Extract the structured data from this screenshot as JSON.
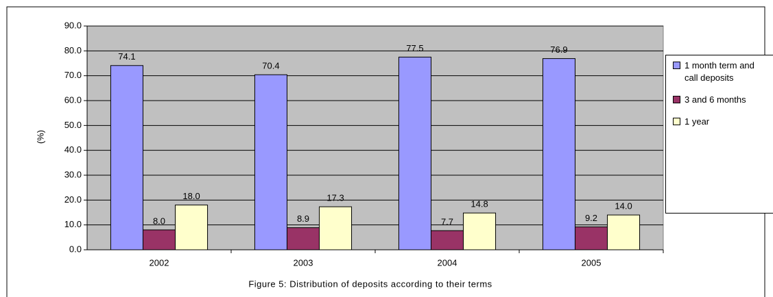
{
  "chart_data": {
    "type": "bar",
    "title": "Figure 5: Distribution of deposits according to their terms",
    "y_label": "(%)",
    "categories": [
      "2002",
      "2003",
      "2004",
      "2005"
    ],
    "series": [
      {
        "name": "1 month term and call deposits",
        "color": "#9999ff",
        "values": [
          74.1,
          70.4,
          77.5,
          76.9
        ],
        "value_labels": [
          "74.1",
          "70.4",
          "77.5",
          "76.9"
        ]
      },
      {
        "name": "3 and 6 months",
        "color": "#993366",
        "values": [
          8.0,
          8.9,
          7.7,
          9.2
        ],
        "value_labels": [
          "8.0",
          "8.9",
          "7.7",
          "9.2"
        ]
      },
      {
        "name": "1 year",
        "color": "#ffffcc",
        "values": [
          18.0,
          17.3,
          14.8,
          14.0
        ],
        "value_labels": [
          "18.0",
          "17.3",
          "14.8",
          "14.0"
        ]
      }
    ],
    "ylim": [
      0,
      90
    ],
    "yticks": [
      {
        "value": 0,
        "label": "0.0"
      },
      {
        "value": 10,
        "label": "10.0"
      },
      {
        "value": 20,
        "label": "20.0"
      },
      {
        "value": 30,
        "label": "30.0"
      },
      {
        "value": 40,
        "label": "40.0"
      },
      {
        "value": 50,
        "label": "50.0"
      },
      {
        "value": 60,
        "label": "60.0"
      },
      {
        "value": 70,
        "label": "70.0"
      },
      {
        "value": 80,
        "label": "80.0"
      },
      {
        "value": 90,
        "label": "90.0"
      }
    ],
    "grid": true,
    "background": "#c0c0c0",
    "legend": "right"
  }
}
